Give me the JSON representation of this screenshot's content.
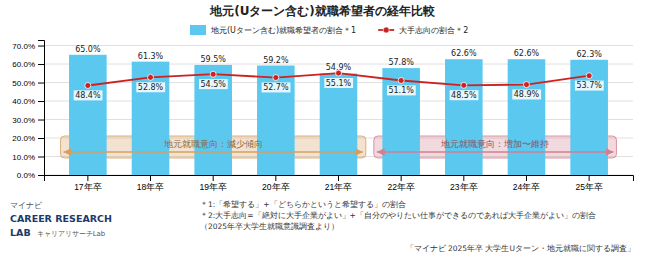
{
  "chart_data": {
    "type": "bar",
    "title": "地元(Uターン含む)就職希望者の経年比較",
    "categories": [
      "17年卒",
      "18年卒",
      "19年卒",
      "20年卒",
      "21年卒",
      "22年卒",
      "23年卒",
      "24年卒",
      "25年卒"
    ],
    "series": [
      {
        "name": "地元(Uターン含む)就職希望者の割合＊1",
        "type": "bar",
        "color": "#5BC8F0",
        "values": [
          65.0,
          61.3,
          59.5,
          59.2,
          54.9,
          57.8,
          62.6,
          62.6,
          62.3
        ],
        "value_labels": [
          "65.0%",
          "61.3%",
          "59.5%",
          "59.2%",
          "54.9%",
          "57.8%",
          "62.6%",
          "62.6%",
          "62.3%"
        ]
      },
      {
        "name": "大手志向の割合＊2",
        "type": "line",
        "color": "#CC2222",
        "marker": "circle",
        "values": [
          48.4,
          52.8,
          54.5,
          52.7,
          55.1,
          51.1,
          48.5,
          48.9,
          53.7
        ],
        "value_labels": [
          "48.4%",
          "52.8%",
          "54.5%",
          "52.7%",
          "55.1%",
          "51.1%",
          "48.5%",
          "48.9%",
          "53.7%"
        ]
      }
    ],
    "ylim": [
      0,
      73
    ],
    "yticks": [
      {
        "value": 0,
        "label": "0.0%"
      },
      {
        "value": 10,
        "label": "10.0%"
      },
      {
        "value": 20,
        "label": "20.0%"
      },
      {
        "value": 30,
        "label": "30.0%"
      },
      {
        "value": 40,
        "label": "40.0%"
      },
      {
        "value": 50,
        "label": "50.0%"
      },
      {
        "value": 60,
        "label": "60.0%"
      },
      {
        "value": 70,
        "label": "70.0%"
      }
    ],
    "grid": true,
    "data_labels": true,
    "legend": "top",
    "annotations": [
      {
        "text": "地元就職意向：減少傾向",
        "from": "17年卒",
        "to": "21年卒",
        "color": "#D4A060"
      },
      {
        "text": "地元就職意向：増加〜維持",
        "from": "22年卒",
        "to": "25年卒",
        "color": "#D08090"
      }
    ],
    "footnotes": [
      "＊1:「希望する」+「どちらかというと希望する」の割合",
      "＊2:大手志向=「絶対に大手企業がよい」+「自分のやりたい仕事ができるのであれば大手企業がよい」の割合",
      "（2025年卒大学生就職意識調査より）"
    ],
    "source": "「マイナビ 2025年卒 大学生Uターン・地元就職に関する調査」",
    "logo": [
      "マイナビ",
      "CAREER RESEARCH",
      "LAB",
      "キャリアリサーチLab"
    ]
  }
}
